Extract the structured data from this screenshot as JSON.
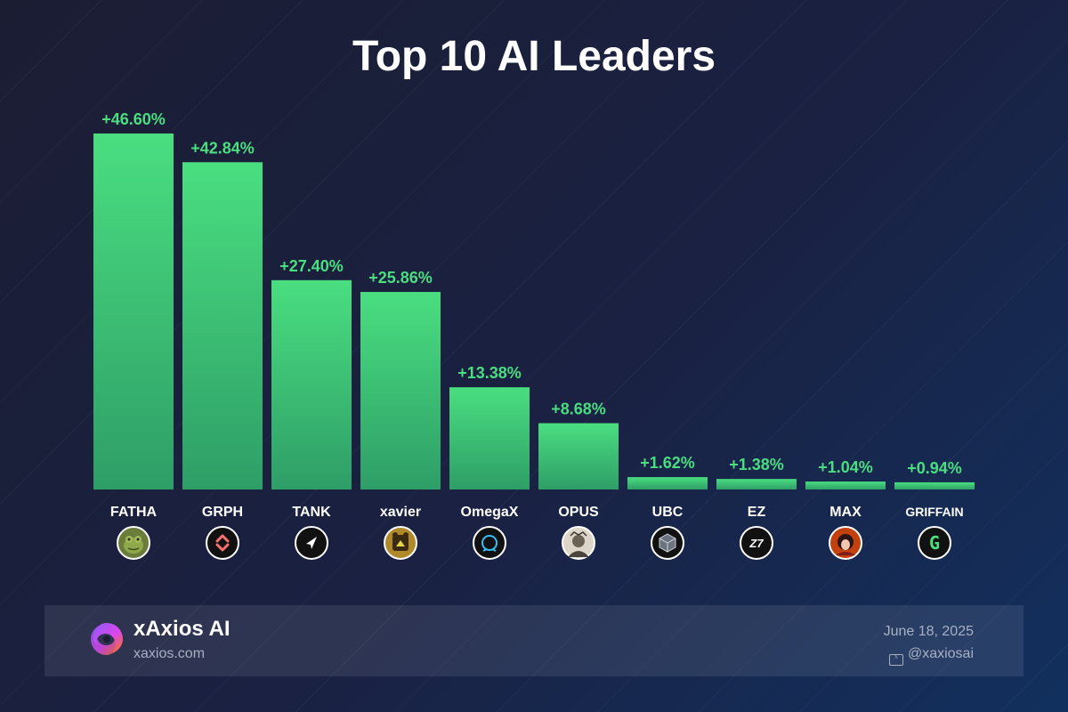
{
  "chart_data": {
    "type": "bar",
    "title": "Top 10 AI Leaders",
    "categories": [
      "FATHA",
      "GRPH",
      "TANK",
      "xavier",
      "OmegaX",
      "OPUS",
      "UBC",
      "EZ",
      "MAX",
      "GRIFFAIN"
    ],
    "values": [
      46.6,
      42.84,
      27.4,
      25.86,
      13.38,
      8.68,
      1.62,
      1.38,
      1.04,
      0.94
    ],
    "value_labels": [
      "+46.60%",
      "+42.84%",
      "+27.40%",
      "+25.86%",
      "+13.38%",
      "+8.68%",
      "+1.62%",
      "+1.38%",
      "+1.04%",
      "+0.94%"
    ],
    "ylim": [
      0,
      46.6
    ],
    "xlabel": "",
    "ylabel": "",
    "grid": false,
    "legend": "none",
    "bar_color_top": "#4ade80",
    "bar_color_bottom": "#2e9e67",
    "label_color": "#4ade80",
    "token_icons": [
      "frog-avatar-icon",
      "grph-logo-icon",
      "tank-arrow-icon",
      "xavier-bear-icon",
      "omegax-ring-icon",
      "opus-portrait-icon",
      "ubc-cube-icon",
      "ez-logo-icon",
      "max-anime-avatar-icon",
      "griffain-g-icon"
    ]
  },
  "footer": {
    "brand": "xAxios AI",
    "url": "xaxios.com",
    "date": "June 18, 2025",
    "handle": "@xaxiosai",
    "handle_icon": "x-icon"
  },
  "colors": {
    "accent_green": "#4ade80",
    "background_start": "#1b1d33",
    "background_end": "#12305e"
  }
}
